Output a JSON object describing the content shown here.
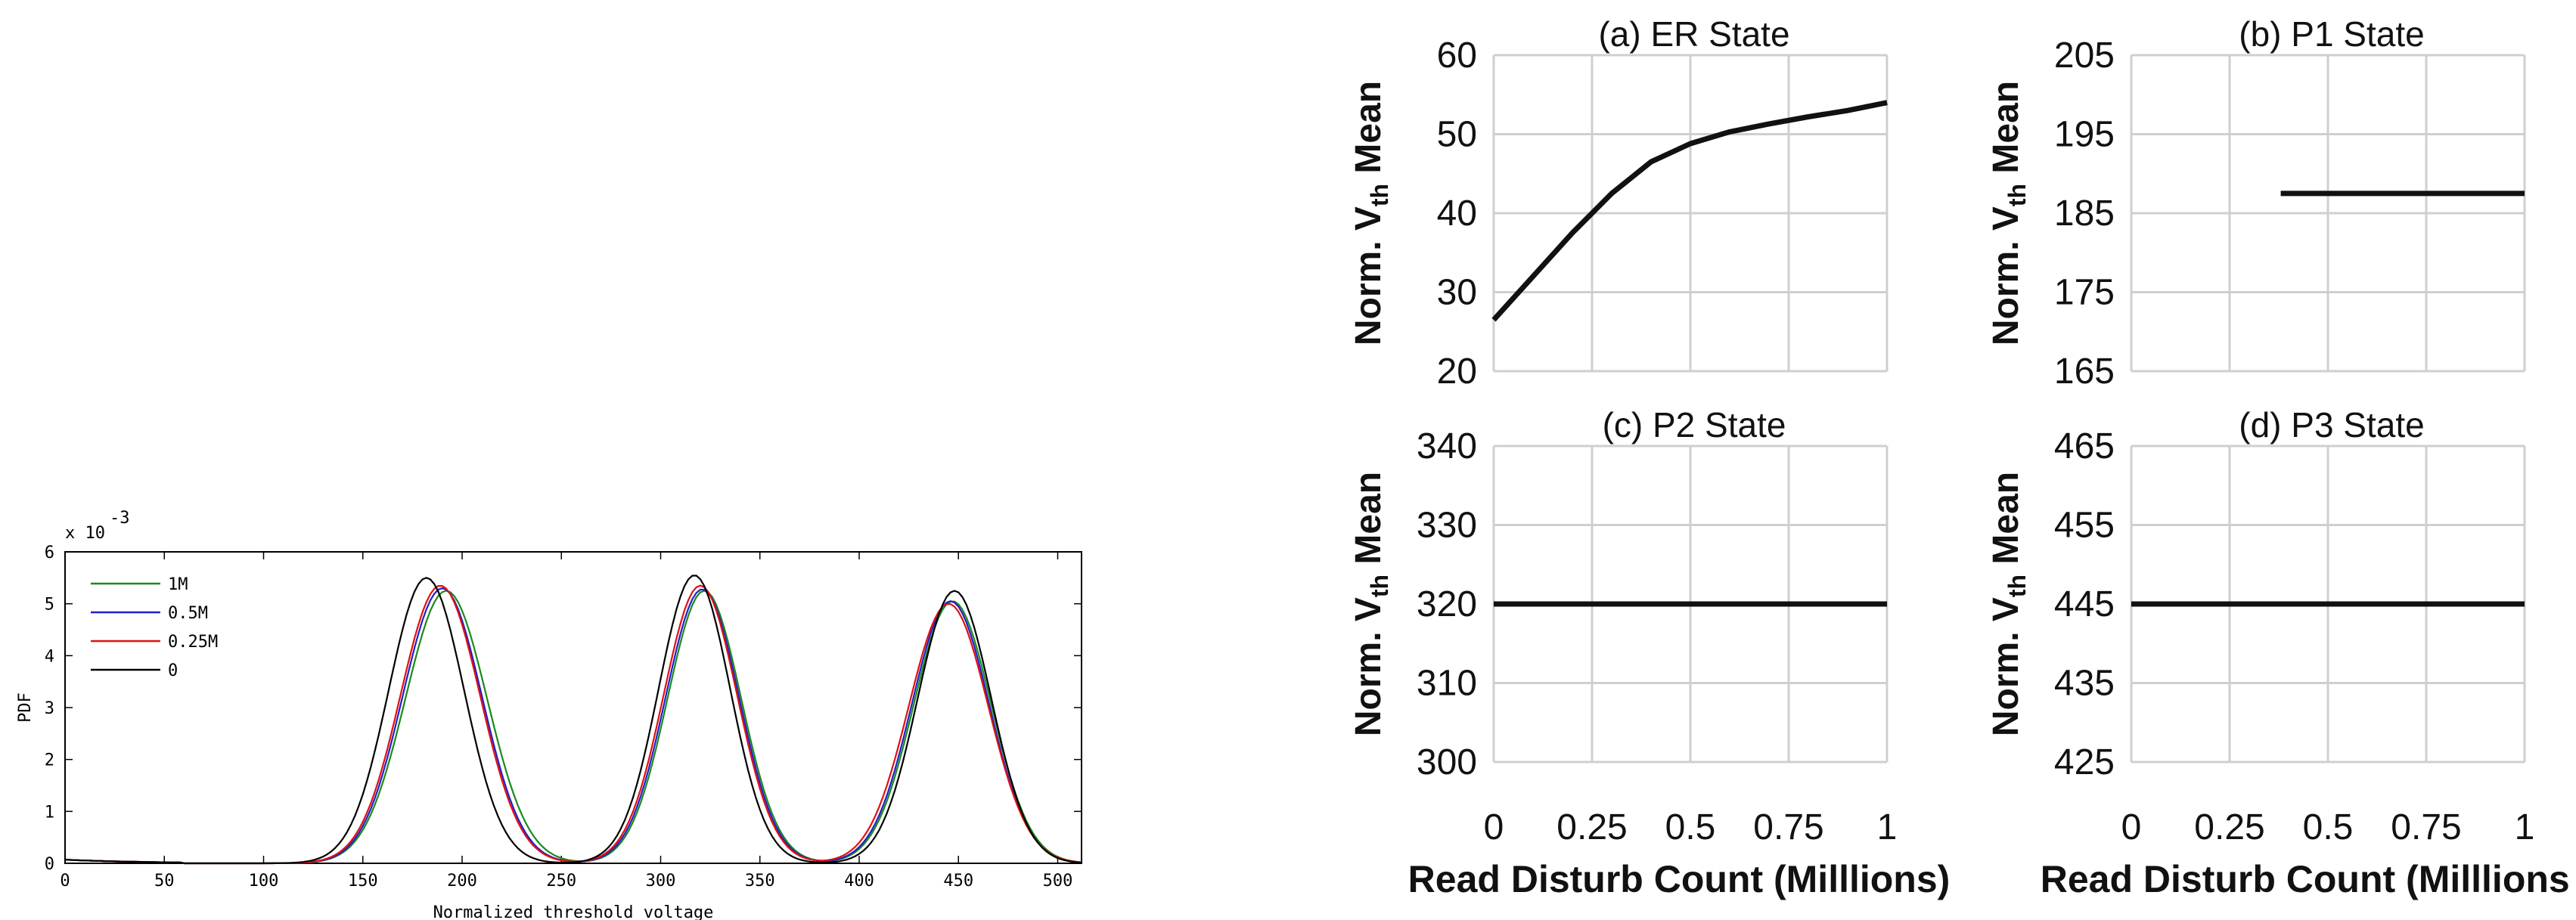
{
  "chart_data": [
    {
      "type": "line",
      "title": "",
      "xlabel": "Normalized threshold voltage",
      "ylabel": "PDF",
      "y_exponent": "x 10",
      "y_exponent_power": "-3",
      "xlim": [
        0,
        512
      ],
      "ylim": [
        0,
        6
      ],
      "xticks": [
        "0",
        "50",
        "100",
        "150",
        "200",
        "250",
        "300",
        "350",
        "400",
        "450",
        "500"
      ],
      "yticks": [
        "0",
        "1",
        "2",
        "3",
        "4",
        "5",
        "6"
      ],
      "legend_position": "top-left",
      "series": [
        {
          "name": "1M",
          "color": "#1a8a1a",
          "peaks": [
            [
              192,
              5.25,
              20.5
            ],
            [
              322,
              5.25,
              18.5
            ],
            [
              447,
              5.05,
              19.5
            ]
          ]
        },
        {
          "name": "0.5M",
          "color": "#2020cc",
          "peaks": [
            [
              190,
              5.3,
              20
            ],
            [
              321,
              5.28,
              18.5
            ],
            [
              446,
              5.05,
              19.5
            ]
          ]
        },
        {
          "name": "0.25M",
          "color": "#e01010",
          "peaks": [
            [
              189,
              5.35,
              20
            ],
            [
              320,
              5.35,
              18.5
            ],
            [
              445,
              5.0,
              20
            ]
          ]
        },
        {
          "name": "0",
          "color": "#000000",
          "peaks": [
            [
              182,
              5.5,
              19
            ],
            [
              317,
              5.55,
              18
            ],
            [
              448,
              5.25,
              18.5
            ]
          ]
        }
      ]
    },
    {
      "type": "line",
      "panels": [
        {
          "title": "(a) ER State",
          "ylabel_main": "Norm. V",
          "ylabel_sub": "th",
          "ylabel_tail": " Mean",
          "ylim": [
            20,
            60
          ],
          "yticks": [
            "20",
            "30",
            "40",
            "50",
            "60"
          ],
          "x": [
            0,
            0.1,
            0.2,
            0.3,
            0.4,
            0.5,
            0.6,
            0.7,
            0.8,
            0.9,
            1.0
          ],
          "y": [
            26.5,
            32,
            37.5,
            42.5,
            46.5,
            48.8,
            50.3,
            51.3,
            52.2,
            53.0,
            54.0
          ]
        },
        {
          "title": "(b) P1 State",
          "ylabel_main": "Norm. V",
          "ylabel_sub": "th",
          "ylabel_tail": " Mean",
          "ylim": [
            165,
            205
          ],
          "yticks": [
            "165",
            "175",
            "185",
            "195",
            "205"
          ],
          "x": [
            0.38,
            1.0
          ],
          "y": [
            187.5,
            187.5
          ]
        },
        {
          "title": "(c) P2 State",
          "ylabel_main": "Norm. V",
          "ylabel_sub": "th",
          "ylabel_tail": " Mean",
          "ylim": [
            300,
            340
          ],
          "yticks": [
            "300",
            "310",
            "320",
            "330",
            "340"
          ],
          "x": [
            0,
            1.0
          ],
          "y": [
            320,
            320
          ]
        },
        {
          "title": "(d) P3 State",
          "ylabel_main": "Norm. V",
          "ylabel_sub": "th",
          "ylabel_tail": " Mean",
          "ylim": [
            425,
            465
          ],
          "yticks": [
            "425",
            "435",
            "445",
            "455",
            "465"
          ],
          "x": [
            0,
            1.0
          ],
          "y": [
            445,
            445
          ]
        }
      ],
      "xlim": [
        0,
        1
      ],
      "xticks": [
        "0",
        "0.25",
        "0.5",
        "0.75",
        "1"
      ],
      "xlabel_left": "Read Disturb Count (Milllions)",
      "xlabel_right": "Read Disturb Count (Milllions )",
      "grid": true
    }
  ]
}
